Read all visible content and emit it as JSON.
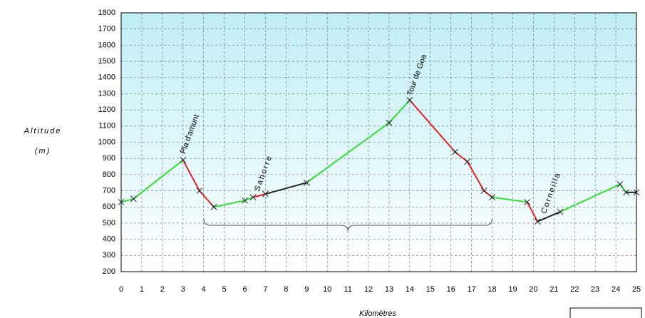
{
  "chart_data": {
    "type": "line",
    "y_label": [
      "Altitude",
      "(m)"
    ],
    "x_label": "Kilomètres",
    "x": [
      0,
      0.6,
      3,
      3.8,
      4.5,
      6,
      6.4,
      7,
      9,
      13,
      14,
      16.2,
      16.8,
      17.6,
      18,
      19.7,
      20.2,
      21.3,
      24.2,
      24.5,
      25
    ],
    "values": [
      630,
      650,
      890,
      700,
      600,
      640,
      660,
      680,
      750,
      1120,
      1260,
      940,
      880,
      700,
      660,
      630,
      510,
      570,
      740,
      690,
      690
    ],
    "segment_colors": [
      "#33dd33",
      "#33dd33",
      "#dd2222",
      "#dd2222",
      "#33dd33",
      "#33dd33",
      "#dd2222",
      "#222222",
      "#33dd33",
      "#33dd33",
      "#dd2222",
      "#dd2222",
      "#dd2222",
      "#dd2222",
      "#33dd33",
      "#dd2222",
      "#222222",
      "#33dd33",
      "#33dd33",
      "#222222"
    ],
    "annotations": [
      {
        "text": "Pla d'amunt",
        "x": 3,
        "y": 930
      },
      {
        "text": "Sahorre",
        "x": 6.6,
        "y": 700
      },
      {
        "text": "Tour de Goa",
        "x": 14,
        "y": 1290
      },
      {
        "text": "Corneilla",
        "x": 20.5,
        "y": 560
      }
    ],
    "brace": [
      4,
      18
    ],
    "xlim": [
      0,
      25
    ],
    "xticks": [
      0,
      1,
      2,
      3,
      4,
      5,
      6,
      7,
      8,
      9,
      10,
      11,
      12,
      13,
      14,
      15,
      16,
      17,
      18,
      19,
      20,
      21,
      22,
      23,
      24,
      25
    ],
    "ylim": [
      200,
      1800
    ],
    "yticks": [
      200,
      300,
      400,
      500,
      600,
      700,
      800,
      900,
      1000,
      1100,
      1200,
      1300,
      1400,
      1500,
      1600,
      1700,
      1800
    ],
    "grid": true
  }
}
